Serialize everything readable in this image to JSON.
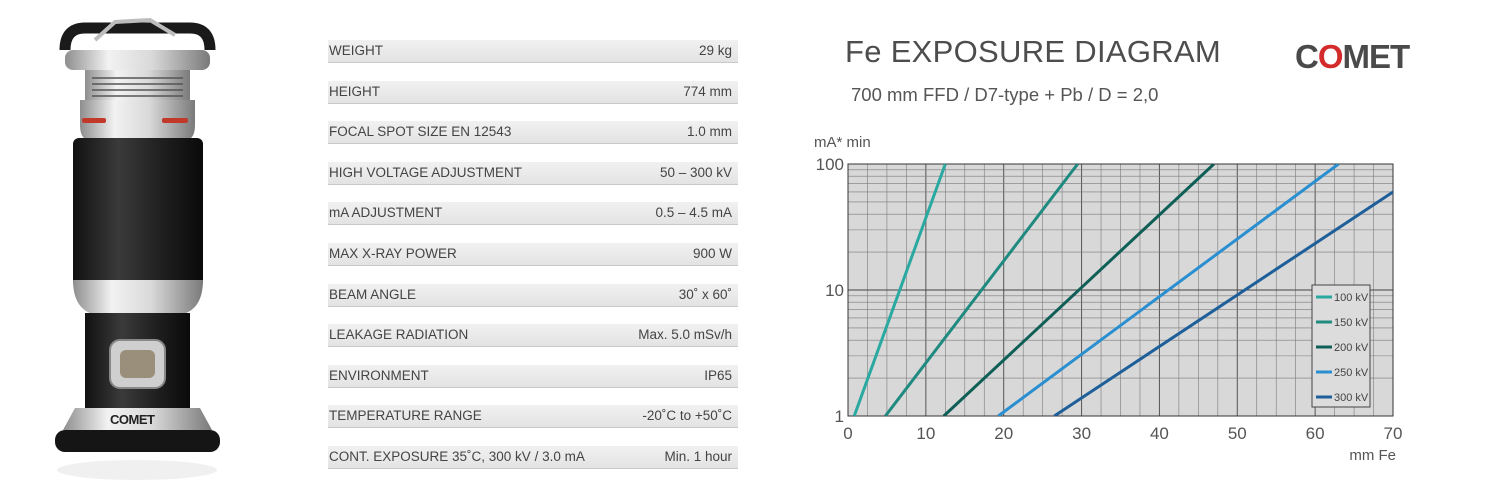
{
  "product": {
    "brand_badge": "COMET"
  },
  "specs": [
    {
      "label": "WEIGHT",
      "value": "29 kg"
    },
    {
      "label": "HEIGHT",
      "value": "774 mm"
    },
    {
      "label": "FOCAL SPOT SIZE EN 12543",
      "value": "1.0 mm"
    },
    {
      "label": "HIGH VOLTAGE ADJUSTMENT",
      "value": "50 – 300 kV"
    },
    {
      "label": "mA ADJUSTMENT",
      "value": "0.5 – 4.5 mA"
    },
    {
      "label": "MAX X-RAY POWER",
      "value": "900 W"
    },
    {
      "label": "BEAM ANGLE",
      "value": "30˚ x 60˚"
    },
    {
      "label": "LEAKAGE RADIATION",
      "value": "Max. 5.0 mSv/h"
    },
    {
      "label": "ENVIRONMENT",
      "value": "IP65"
    },
    {
      "label": "TEMPERATURE RANGE",
      "value": "-20˚C to +50˚C"
    },
    {
      "label": "CONT. EXPOSURE  35˚C, 300 kV / 3.0 mA",
      "value": "Min. 1 hour"
    }
  ],
  "brand": {
    "logo_text": "COMET",
    "accent": "#d32b2b"
  },
  "chart_data": {
    "type": "line",
    "title": "Fe EXPOSURE DIAGRAM",
    "subtitle": "700 mm FFD / D7-type + Pb / D = 2,0",
    "ylabel": "mA* min",
    "xlabel": "mm Fe",
    "xlim": [
      0,
      70
    ],
    "ylim": [
      1,
      100
    ],
    "yscale": "log",
    "grid": true,
    "legend_position": "right",
    "x_ticks": [
      "0",
      "10",
      "20",
      "30",
      "40",
      "50",
      "60",
      "70"
    ],
    "y_ticks": [
      "1",
      "10",
      "100"
    ],
    "series": [
      {
        "name": "100 kV",
        "color": "#2aa9a1",
        "x": [
          0.8,
          12.5
        ],
        "y": [
          1,
          100
        ]
      },
      {
        "name": "150 kV",
        "color": "#1f8a80",
        "x": [
          4.8,
          29.5
        ],
        "y": [
          1,
          100
        ]
      },
      {
        "name": "200 kV",
        "color": "#0f5f57",
        "x": [
          12.3,
          47.0
        ],
        "y": [
          1,
          100
        ]
      },
      {
        "name": "250 kV",
        "color": "#2a8fd0",
        "x": [
          19.3,
          63.0
        ],
        "y": [
          1,
          100
        ]
      },
      {
        "name": "300 kV",
        "color": "#1e5f9a",
        "x": [
          26.5,
          70.0
        ],
        "y": [
          1,
          60
        ]
      }
    ]
  }
}
